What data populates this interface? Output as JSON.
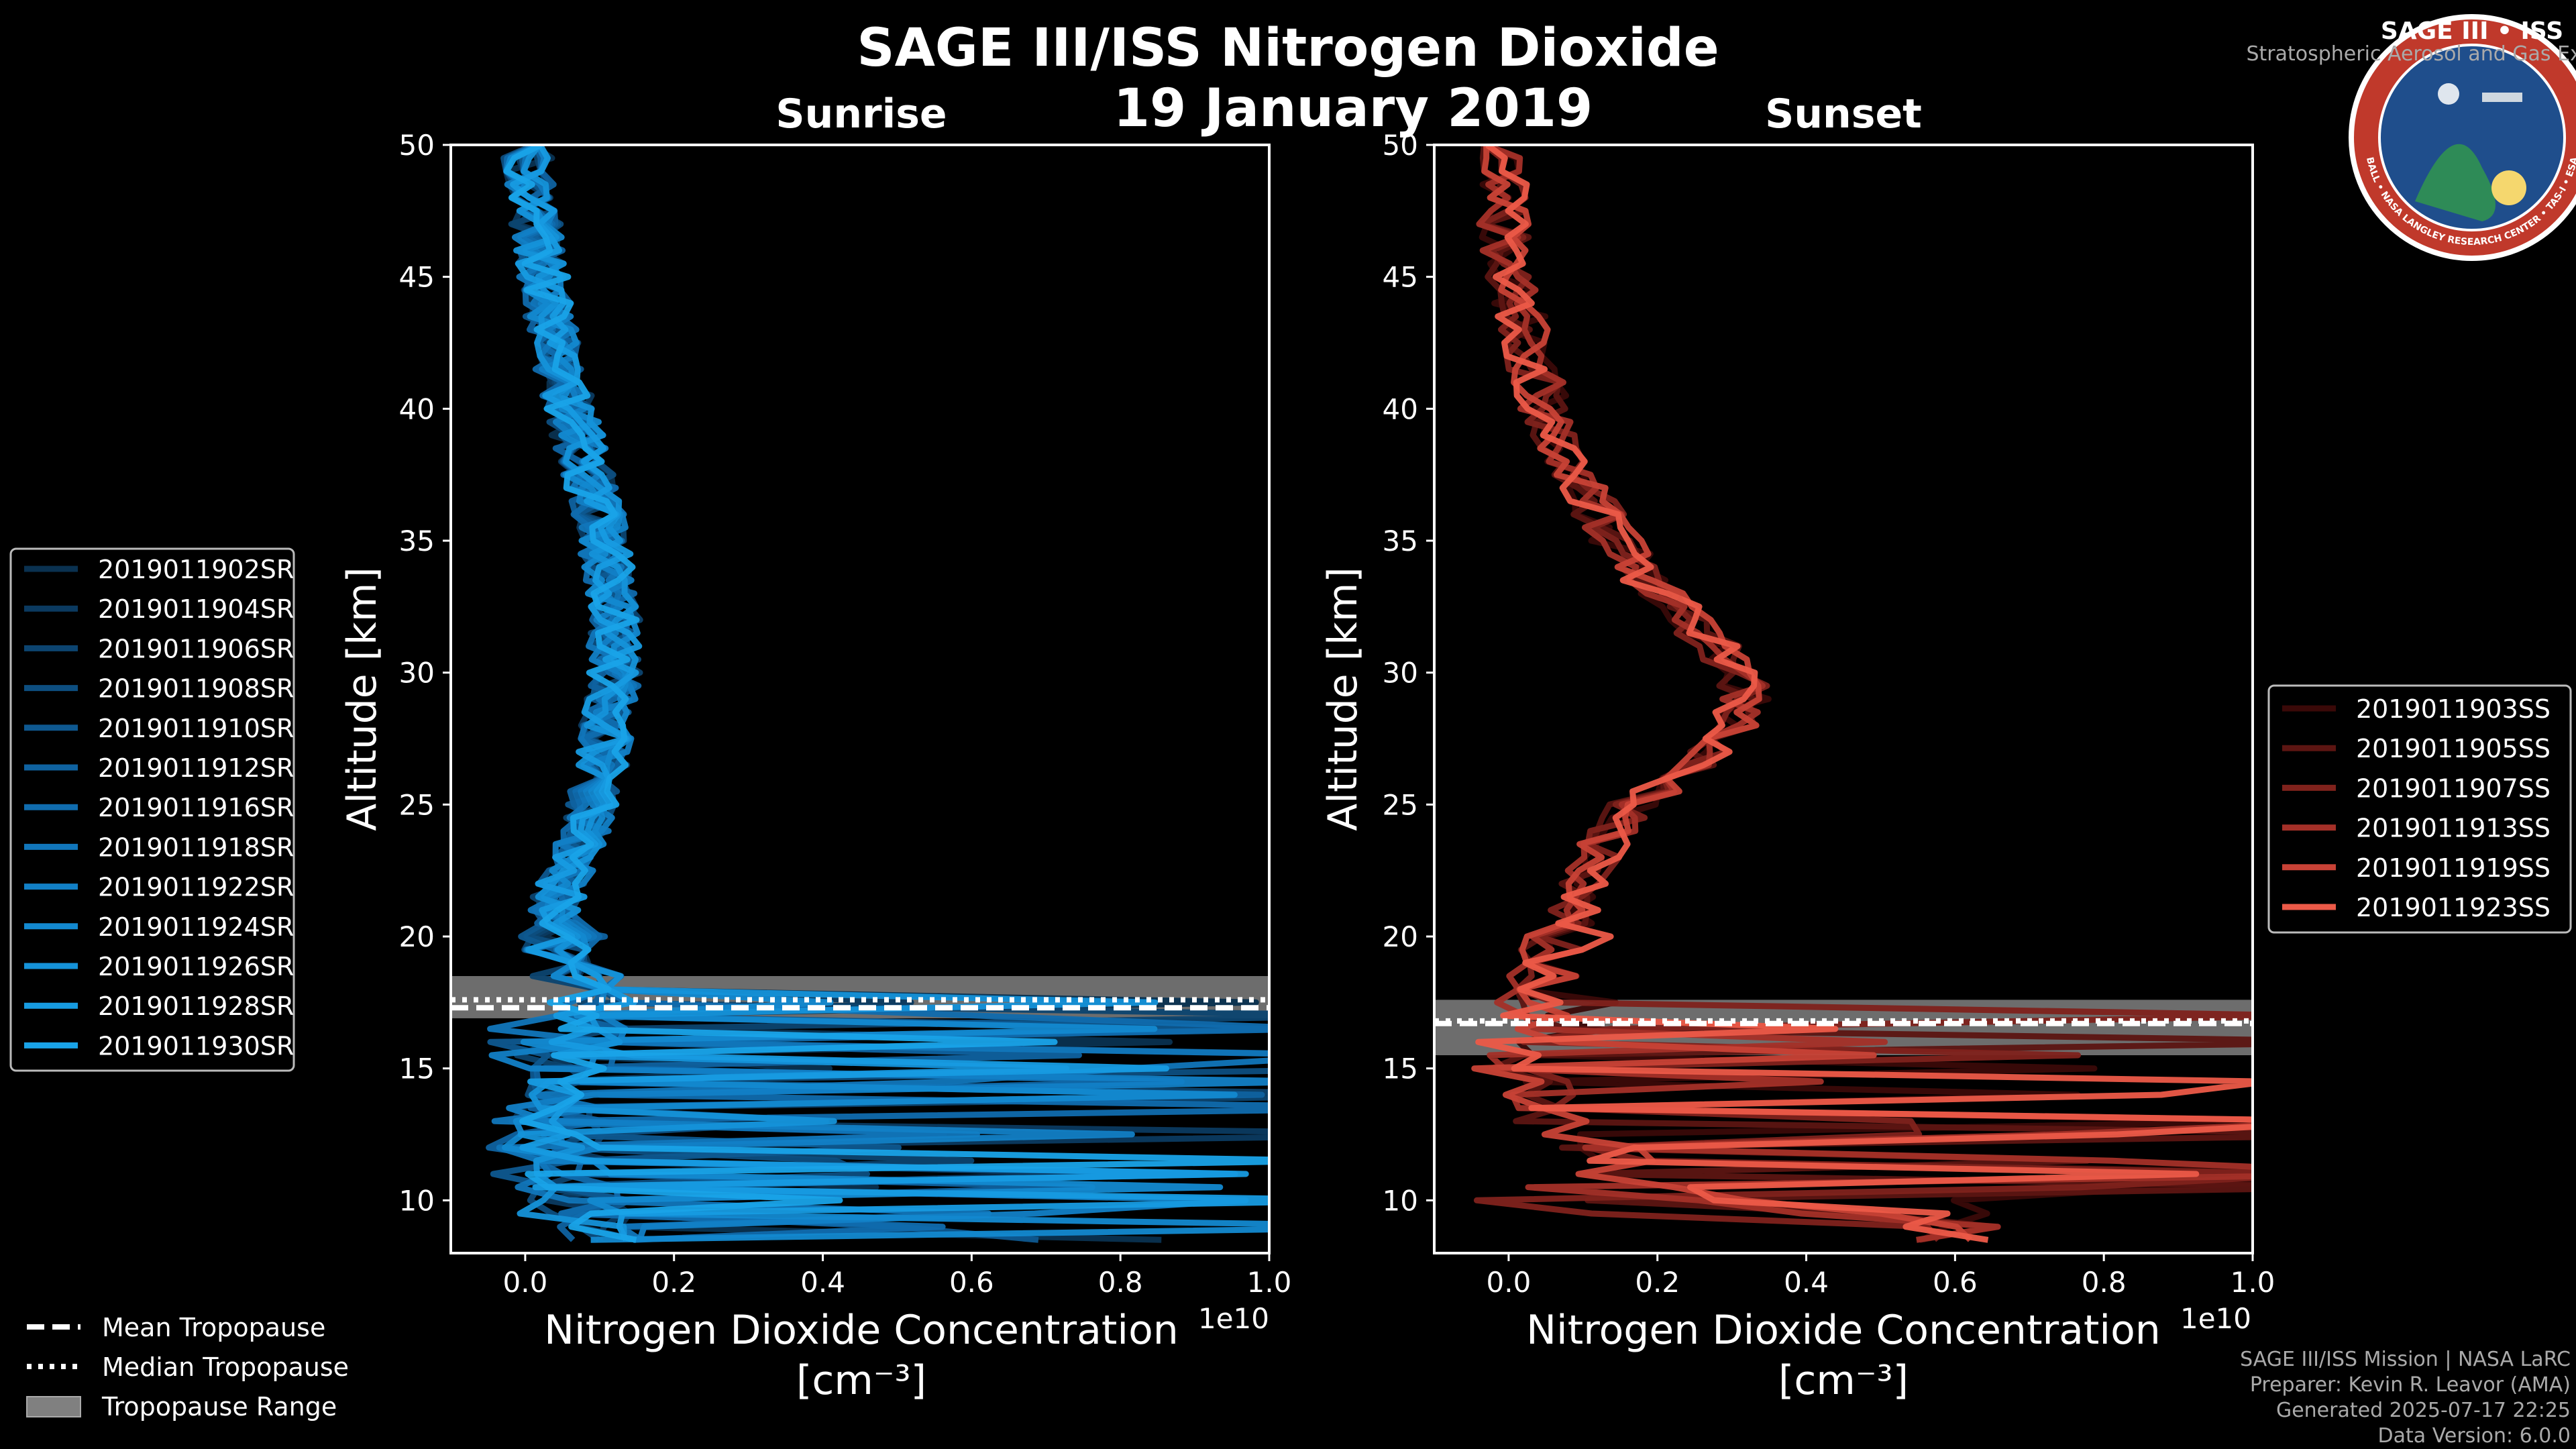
{
  "figure": {
    "title": "SAGE III/ISS Nitrogen Dioxide",
    "date": "19 January 2019"
  },
  "badge": {
    "title": "SAGE III • ISS",
    "subtitle": "Stratospheric Aerosol and Gas Experiment III",
    "ring_text": "BALL • NASA LANGLEY RESEARCH CENTER • TAS-I • ESA",
    "colors": {
      "ring": "#c0392b",
      "inner": "#1f4e8c",
      "rim": "#ffffff"
    }
  },
  "credits": [
    "SAGE III/ISS Mission | NASA LaRC",
    "Preparer: Kevin R. Leavor (AMA)",
    "Generated 2025-07-17 22:25",
    "Data Version: 6.0.0"
  ],
  "common_legend": {
    "items": [
      {
        "label": "Mean Tropopause",
        "style": "dashed"
      },
      {
        "label": "Median Tropopause",
        "style": "dotted"
      },
      {
        "label": "Tropopause Range",
        "style": "patch"
      }
    ],
    "colors": {
      "line": "#ffffff",
      "patch": "#808080"
    }
  },
  "chart_data": [
    {
      "type": "line",
      "title": "Sunrise",
      "xlabel": "Nitrogen Dioxide Concentration",
      "xlabel_units": "[cm⁻³]",
      "ylabel": "Altitude [km]",
      "x_offset_label": "1e10",
      "xlim": [
        -0.1,
        1.0
      ],
      "ylim": [
        8,
        50
      ],
      "x_ticks": [
        0.0,
        0.2,
        0.4,
        0.6,
        0.8,
        1.0
      ],
      "x_tick_labels": [
        "0.0",
        "0.2",
        "0.4",
        "0.6",
        "0.8",
        "1.0"
      ],
      "y_ticks": [
        10,
        15,
        20,
        25,
        30,
        35,
        40,
        45,
        50
      ],
      "y_tick_labels": [
        "10",
        "15",
        "20",
        "25",
        "30",
        "35",
        "40",
        "45",
        "50"
      ],
      "tropopause": {
        "mean": 17.3,
        "median": 17.6,
        "range": [
          16.9,
          18.5
        ]
      },
      "legend_position": "outside-left",
      "series": [
        {
          "name": "2019011902SR",
          "color": "#0a3150"
        },
        {
          "name": "2019011904SR",
          "color": "#0b3a60"
        },
        {
          "name": "2019011906SR",
          "color": "#0c4470"
        },
        {
          "name": "2019011908SR",
          "color": "#0d4e80"
        },
        {
          "name": "2019011910SR",
          "color": "#0e5890"
        },
        {
          "name": "2019011912SR",
          "color": "#0f62a0"
        },
        {
          "name": "2019011916SR",
          "color": "#106cae"
        },
        {
          "name": "2019011918SR",
          "color": "#1176bb"
        },
        {
          "name": "2019011922SR",
          "color": "#1280c6"
        },
        {
          "name": "2019011924SR",
          "color": "#1389d0"
        },
        {
          "name": "2019011926SR",
          "color": "#1592d9"
        },
        {
          "name": "2019011928SR",
          "color": "#179be1"
        },
        {
          "name": "2019011930SR",
          "color": "#19a3e8"
        }
      ],
      "mean_profile": {
        "altitude": [
          50,
          48,
          46,
          44,
          42,
          40,
          38,
          36,
          34,
          32,
          30,
          28,
          26,
          24,
          22,
          21,
          20,
          19,
          18,
          17,
          16,
          15,
          14,
          13,
          12,
          11,
          10,
          9
        ],
        "value": [
          0.0,
          0.01,
          0.02,
          0.03,
          0.04,
          0.06,
          0.08,
          0.1,
          0.11,
          0.12,
          0.12,
          0.11,
          0.1,
          0.08,
          0.05,
          0.04,
          0.05,
          0.06,
          0.08,
          0.1,
          0.08,
          0.06,
          0.05,
          0.04,
          0.05,
          0.06,
          0.08,
          0.1
        ]
      }
    },
    {
      "type": "line",
      "title": "Sunset",
      "xlabel": "Nitrogen Dioxide Concentration",
      "xlabel_units": "[cm⁻³]",
      "ylabel": "Altitude [km]",
      "x_offset_label": "1e10",
      "xlim": [
        -0.1,
        1.0
      ],
      "ylim": [
        8,
        50
      ],
      "x_ticks": [
        0.0,
        0.2,
        0.4,
        0.6,
        0.8,
        1.0
      ],
      "x_tick_labels": [
        "0.0",
        "0.2",
        "0.4",
        "0.6",
        "0.8",
        "1.0"
      ],
      "y_ticks": [
        10,
        15,
        20,
        25,
        30,
        35,
        40,
        45,
        50
      ],
      "y_tick_labels": [
        "10",
        "15",
        "20",
        "25",
        "30",
        "35",
        "40",
        "45",
        "50"
      ],
      "tropopause": {
        "mean": 16.7,
        "median": 16.8,
        "range": [
          15.5,
          17.6
        ]
      },
      "legend_position": "outside-right",
      "series": [
        {
          "name": "2019011903SS",
          "color": "#3a0908"
        },
        {
          "name": "2019011905SS",
          "color": "#5c1512"
        },
        {
          "name": "2019011907SS",
          "color": "#80221c"
        },
        {
          "name": "2019011913SS",
          "color": "#a43028"
        },
        {
          "name": "2019011919SS",
          "color": "#c84236"
        },
        {
          "name": "2019011923SS",
          "color": "#ec5a48"
        }
      ],
      "mean_profile": {
        "altitude": [
          50,
          48,
          46,
          44,
          42,
          40,
          38,
          36,
          34,
          32,
          30,
          29,
          28,
          27,
          26,
          25,
          24,
          23,
          22,
          21,
          20,
          19,
          18,
          17,
          16,
          15,
          14,
          13,
          12,
          11,
          10,
          9
        ],
        "value": [
          0.0,
          -0.01,
          0.0,
          0.01,
          0.03,
          0.05,
          0.08,
          0.12,
          0.17,
          0.24,
          0.31,
          0.32,
          0.3,
          0.27,
          0.22,
          0.17,
          0.14,
          0.12,
          0.1,
          0.09,
          0.08,
          0.06,
          0.04,
          0.03,
          0.02,
          0.03,
          0.05,
          0.08,
          0.12,
          0.15,
          0.3,
          0.6
        ]
      }
    }
  ]
}
